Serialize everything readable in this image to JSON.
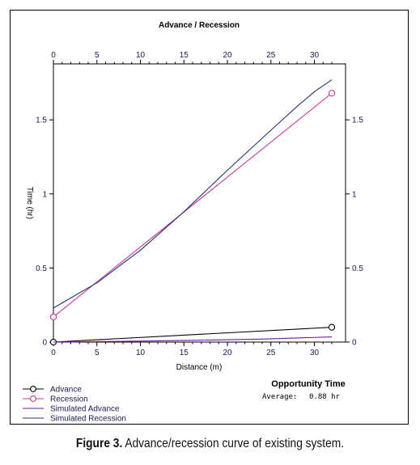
{
  "chart_data": {
    "type": "line",
    "title": "Advance / Recession",
    "xlabel": "Distance (m)",
    "ylabel": "Time (hr)",
    "xlim": [
      0,
      32
    ],
    "ylim": [
      0,
      1.8
    ],
    "x_ticks": [
      0,
      5,
      10,
      15,
      20,
      25,
      30
    ],
    "y_ticks": [
      0,
      0.5,
      1,
      1.5
    ],
    "y_tick_labels": [
      "0",
      "0.5",
      "1",
      "1.5"
    ],
    "grid": false,
    "legend_position": "bottom-left",
    "series": [
      {
        "name": "Advance",
        "color": "#000000",
        "marker": "circle",
        "points": [
          [
            0,
            0.0
          ],
          [
            32,
            0.1
          ]
        ]
      },
      {
        "name": "Recession",
        "color": "#c8389a",
        "marker": "circle",
        "points": [
          [
            0,
            0.17
          ],
          [
            32,
            1.68
          ]
        ]
      },
      {
        "name": "Simulated Advance",
        "color": "#6a1fa0",
        "marker": "none",
        "points": [
          [
            0,
            0.0
          ],
          [
            8,
            0.005
          ],
          [
            16,
            0.012
          ],
          [
            24,
            0.02
          ],
          [
            32,
            0.035
          ]
        ]
      },
      {
        "name": "Simulated Recession",
        "color": "#24346e",
        "marker": "none",
        "points": [
          [
            0,
            0.23
          ],
          [
            5,
            0.4
          ],
          [
            10,
            0.62
          ],
          [
            15,
            0.88
          ],
          [
            20,
            1.16
          ],
          [
            25,
            1.43
          ],
          [
            28,
            1.59
          ],
          [
            30,
            1.69
          ],
          [
            32,
            1.77
          ]
        ]
      }
    ]
  },
  "opportunity": {
    "title": "Opportunity Time",
    "average_label": "Average:",
    "average_value": "0.88 hr"
  },
  "caption": {
    "lead": "Figure 3.",
    "text": " Advance/recession curve of existing system."
  }
}
